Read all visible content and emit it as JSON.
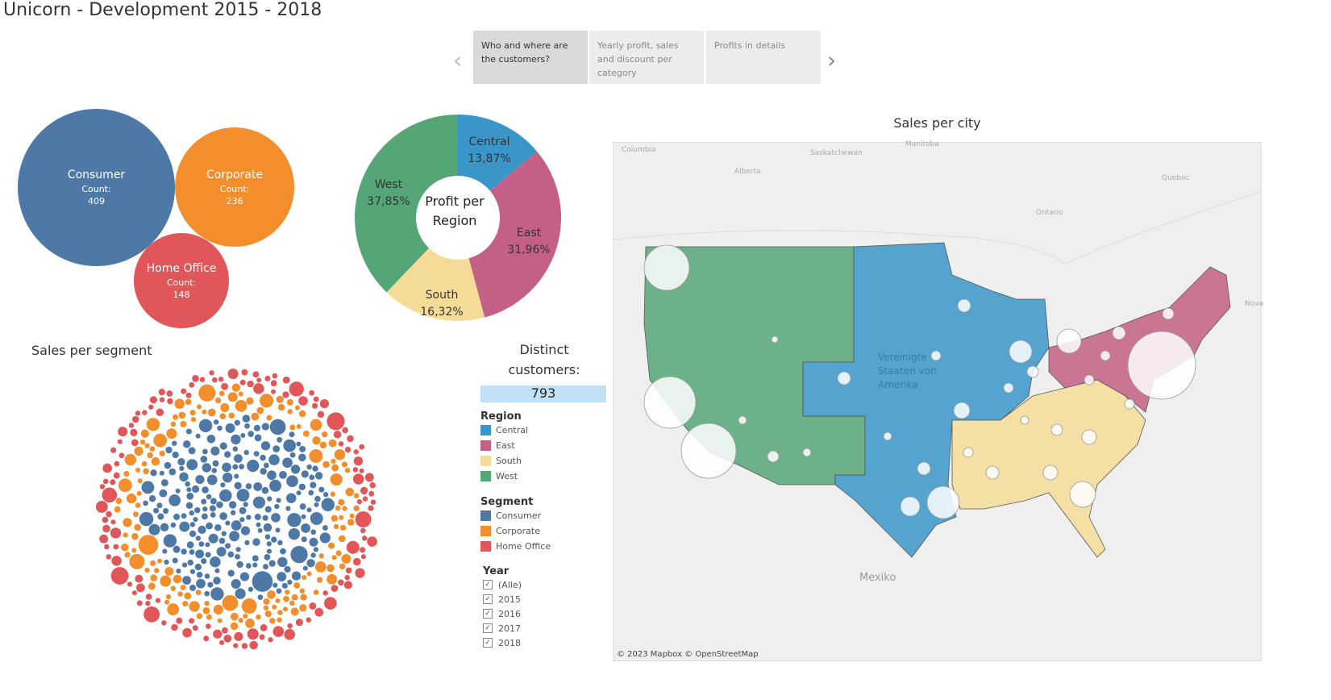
{
  "title": "Unicorn - Development 2015 - 2018",
  "story": {
    "tabs": [
      "Who and where are the customers?",
      "Yearly profit, sales and discount per category",
      "Profits in details"
    ],
    "prev": "‹",
    "next": "›"
  },
  "segments": [
    {
      "name": "Consumer",
      "count_label": "Count:",
      "count": "409",
      "color": "#4e79a7"
    },
    {
      "name": "Corporate",
      "count_label": "Count:",
      "count": "236",
      "color": "#f28e2b"
    },
    {
      "name": "Home Office",
      "count_label": "Count:",
      "count": "148",
      "color": "#e15759"
    }
  ],
  "donut": {
    "center": "Profit per Region",
    "slices": [
      {
        "name": "Central",
        "pct": 13.87,
        "label": "13,87%",
        "color": "#3a96c9"
      },
      {
        "name": "East",
        "pct": 31.96,
        "label": "31,96%",
        "color": "#c45f85"
      },
      {
        "name": "South",
        "pct": 16.32,
        "label": "16,32%",
        "color": "#f4dc97"
      },
      {
        "name": "West",
        "pct": 37.85,
        "label": "37,85%",
        "color": "#55a677"
      }
    ]
  },
  "sales_segment_title": "Sales per segment",
  "distinct": {
    "title": "Distinct customers:",
    "value": "793"
  },
  "legend_region": {
    "title": "Region",
    "items": [
      {
        "label": "Central",
        "color": "#3a96c9"
      },
      {
        "label": "East",
        "color": "#c45f85"
      },
      {
        "label": "South",
        "color": "#f4dc97"
      },
      {
        "label": "West",
        "color": "#55a677"
      }
    ]
  },
  "legend_segment": {
    "title": "Segment",
    "items": [
      {
        "label": "Consumer",
        "color": "#4e79a7"
      },
      {
        "label": "Corporate",
        "color": "#f28e2b"
      },
      {
        "label": "Home Office",
        "color": "#e15759"
      }
    ]
  },
  "year_filter": {
    "title": "Year",
    "items": [
      {
        "label": "(Alle)",
        "checked": true
      },
      {
        "label": "2015",
        "checked": true
      },
      {
        "label": "2016",
        "checked": true
      },
      {
        "label": "2017",
        "checked": true
      },
      {
        "label": "2018",
        "checked": true
      }
    ]
  },
  "map": {
    "title": "Sales per city",
    "labels": [
      "Columbia",
      "Saskatchewan",
      "Manitoba",
      "Alberta",
      "Quebec",
      "Ontario",
      "Nova",
      "Mexiko",
      "Vereinigte Staaten von Amerika"
    ],
    "attribution": "© 2023 Mapbox © OpenStreetMap"
  }
}
